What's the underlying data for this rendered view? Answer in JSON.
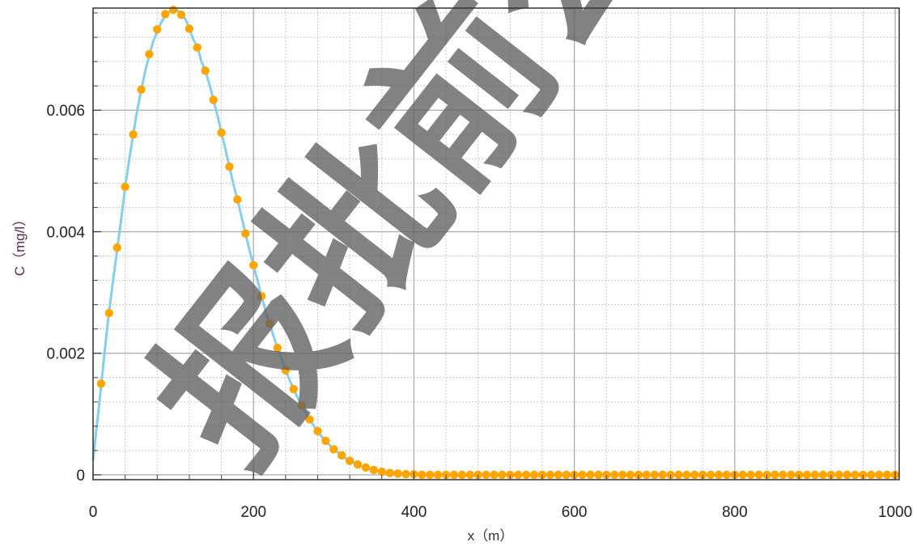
{
  "chart_data": {
    "type": "line",
    "title": "",
    "xlabel": "x（m）",
    "ylabel": "C（mg/l）",
    "xlim": [
      0,
      1005
    ],
    "ylim": [
      -8e-05,
      0.00768
    ],
    "x_ticks": [
      "0",
      "200",
      "400",
      "600",
      "800",
      "1000"
    ],
    "y_ticks": [
      "0",
      "0.002",
      "0.004",
      "0.006"
    ],
    "grid": true,
    "minor_grid": true,
    "legend": "none",
    "colors": {
      "line": "#87ceeb",
      "points": "#ffa500"
    },
    "series": [
      {
        "x": [
          0,
          5,
          10,
          15,
          20,
          25,
          30,
          35,
          40,
          45,
          50,
          55,
          60,
          65,
          70,
          75,
          80,
          85,
          90,
          95,
          100,
          105,
          110,
          115,
          120,
          125,
          130,
          135,
          140,
          145,
          150,
          155,
          160,
          165,
          170,
          175,
          180,
          185,
          190,
          195,
          200,
          205,
          210,
          215,
          220,
          225,
          230,
          235,
          240,
          245,
          250,
          255,
          260,
          265,
          270,
          275,
          280,
          285,
          290,
          295,
          300,
          305,
          310,
          315,
          320,
          325,
          330,
          335,
          340,
          345,
          350,
          360,
          370,
          380,
          390,
          400,
          420,
          440,
          460,
          500,
          600,
          700,
          800,
          900,
          1000
        ],
        "values": [
          0.00025,
          0.00085,
          0.00145,
          0.0021,
          0.0027,
          0.0032,
          0.0037,
          0.0042,
          0.00473,
          0.00518,
          0.0056,
          0.006,
          0.00633,
          0.00664,
          0.0069,
          0.00713,
          0.0073,
          0.00744,
          0.00756,
          0.00762,
          0.00765,
          0.00764,
          0.0076,
          0.0075,
          0.00735,
          0.00716,
          0.00705,
          0.0068,
          0.00665,
          0.00643,
          0.00617,
          0.00592,
          0.00563,
          0.00536,
          0.00507,
          0.00478,
          0.00453,
          0.00425,
          0.00397,
          0.0037,
          0.00345,
          0.0032,
          0.00294,
          0.0027,
          0.00249,
          0.00228,
          0.00209,
          0.0019,
          0.00172,
          0.00156,
          0.00141,
          0.00127,
          0.00114,
          0.00102,
          0.00091,
          0.00081,
          0.00072,
          0.00063,
          0.00056,
          0.00049,
          0.00042,
          0.00037,
          0.00032,
          0.00027,
          0.00023,
          0.0002,
          0.00017,
          0.00014,
          0.00012,
          0.0001,
          8e-05,
          5e-05,
          3e-05,
          2e-05,
          1e-05,
          1e-05,
          0,
          0,
          0,
          0,
          0,
          0,
          0,
          0,
          0
        ]
      },
      {
        "x": [
          10,
          20,
          30,
          40,
          50,
          60,
          70,
          80,
          90,
          100,
          110,
          120,
          130,
          140,
          150,
          160,
          170,
          180,
          190,
          200,
          210,
          220,
          230,
          240,
          250,
          260,
          270,
          280,
          290,
          300,
          310,
          320,
          330,
          340,
          350,
          360,
          370,
          380,
          390,
          400,
          410,
          420,
          430,
          440,
          450,
          460,
          470,
          480,
          490,
          500,
          510,
          520,
          530,
          540,
          550,
          560,
          570,
          580,
          590,
          600,
          610,
          620,
          630,
          640,
          650,
          660,
          670,
          680,
          690,
          700,
          710,
          720,
          730,
          740,
          750,
          760,
          770,
          780,
          790,
          800,
          810,
          820,
          830,
          840,
          850,
          860,
          870,
          880,
          890,
          900,
          910,
          920,
          930,
          940,
          950,
          960,
          970,
          980,
          990,
          1000
        ],
        "values": [
          0.0015,
          0.00266,
          0.00374,
          0.00474,
          0.0056,
          0.00634,
          0.00692,
          0.00733,
          0.00758,
          0.00765,
          0.00757,
          0.00734,
          0.00703,
          0.00665,
          0.00617,
          0.00563,
          0.00507,
          0.00453,
          0.00397,
          0.00345,
          0.00294,
          0.00249,
          0.00209,
          0.00172,
          0.00141,
          0.00114,
          0.00091,
          0.00072,
          0.00056,
          0.00042,
          0.00032,
          0.00023,
          0.00017,
          0.00012,
          8e-05,
          5e-05,
          3e-05,
          2e-05,
          1e-05,
          1e-05,
          0,
          0,
          0,
          0,
          0,
          0,
          0,
          0,
          0,
          0,
          0,
          0,
          0,
          0,
          0,
          0,
          0,
          0,
          0,
          0,
          0,
          0,
          0,
          0,
          0,
          0,
          0,
          0,
          0,
          0,
          0,
          0,
          0,
          0,
          0,
          0,
          0,
          0,
          0,
          0,
          0,
          0,
          0,
          0,
          0,
          0,
          0,
          0,
          0,
          0,
          0,
          0,
          0,
          0,
          0,
          0,
          0,
          0,
          0,
          0
        ]
      }
    ]
  },
  "watermark": {
    "text": "报批前公示"
  }
}
